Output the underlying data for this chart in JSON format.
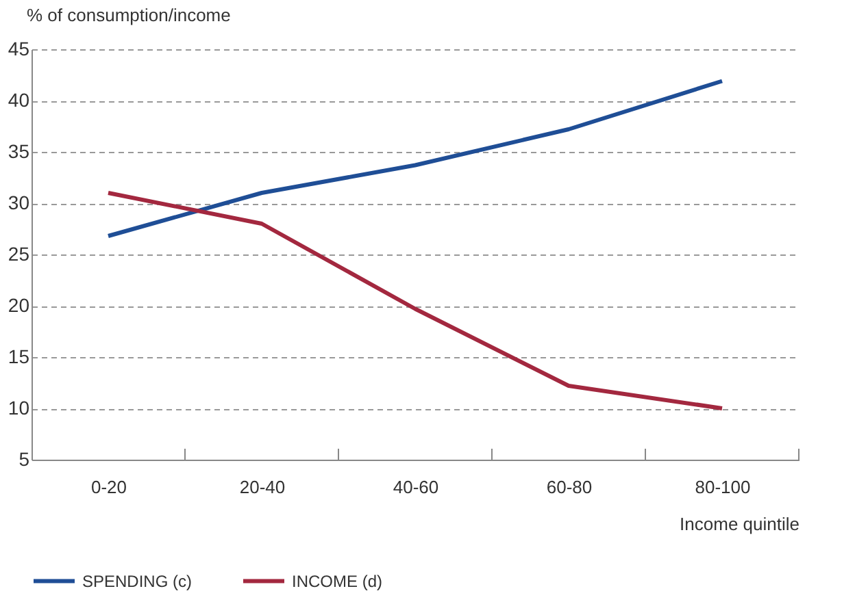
{
  "chart_data": {
    "type": "line",
    "ylabel": "% of consumption/income",
    "xlabel": "Income quintile",
    "categories": [
      "0-20",
      "20-40",
      "40-60",
      "60-80",
      "80-100"
    ],
    "series": [
      {
        "name": "SPENDING (c)",
        "color": "#1f4e96",
        "values": [
          26.8,
          31.0,
          33.7,
          37.2,
          41.9
        ]
      },
      {
        "name": "INCOME (d)",
        "color": "#a3283f",
        "values": [
          31.0,
          28.0,
          19.7,
          12.2,
          10.0
        ]
      }
    ],
    "ylim": [
      5,
      45
    ],
    "yticks": [
      5,
      10,
      15,
      20,
      25,
      30,
      35,
      40,
      45
    ],
    "grid": "y",
    "legend": "bottom left",
    "marker": "none",
    "line_style": "solid"
  }
}
